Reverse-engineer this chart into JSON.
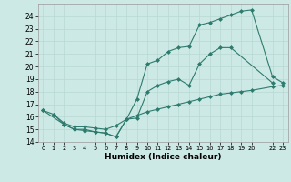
{
  "xlabel": "Humidex (Indice chaleur)",
  "xlim": [
    -0.5,
    23.5
  ],
  "ylim": [
    14,
    25
  ],
  "yticks": [
    14,
    15,
    16,
    17,
    18,
    19,
    20,
    21,
    22,
    23,
    24
  ],
  "xtick_positions": [
    0,
    1,
    2,
    3,
    4,
    5,
    6,
    7,
    8,
    9,
    10,
    11,
    12,
    13,
    14,
    15,
    16,
    17,
    18,
    19,
    20,
    22,
    23
  ],
  "xtick_labels": [
    "0",
    "1",
    "2",
    "3",
    "4",
    "5",
    "6",
    "7",
    "8",
    "9",
    "10",
    "11",
    "12",
    "13",
    "14",
    "15",
    "16",
    "17",
    "18",
    "19",
    "20",
    "22",
    "23"
  ],
  "bg_color": "#cce9e5",
  "grid_color": "#b8d8d4",
  "line_color": "#2e7b6e",
  "line1_x": [
    0,
    1,
    2,
    3,
    4,
    5,
    6,
    7,
    8,
    9,
    10,
    11,
    12,
    13,
    14,
    15,
    16,
    17,
    18,
    22
  ],
  "line1_y": [
    16.5,
    16.2,
    15.4,
    15.0,
    15.0,
    14.8,
    14.7,
    14.4,
    15.8,
    15.9,
    18.0,
    18.5,
    18.8,
    19.0,
    18.5,
    20.2,
    21.0,
    21.5,
    21.5,
    18.7
  ],
  "line2_x": [
    0,
    2,
    3,
    4,
    5,
    6,
    7,
    8,
    9,
    10,
    11,
    12,
    13,
    14,
    15,
    16,
    17,
    18,
    19,
    20,
    22,
    23
  ],
  "line2_y": [
    16.5,
    15.4,
    15.0,
    14.9,
    14.8,
    14.7,
    14.4,
    15.8,
    17.4,
    20.2,
    20.5,
    21.2,
    21.5,
    21.6,
    23.3,
    23.5,
    23.8,
    24.1,
    24.4,
    24.5,
    19.2,
    18.7
  ],
  "line3_x": [
    1,
    2,
    3,
    4,
    5,
    6,
    7,
    8,
    9,
    10,
    11,
    12,
    13,
    14,
    15,
    16,
    17,
    18,
    19,
    20,
    22,
    23
  ],
  "line3_y": [
    16.2,
    15.5,
    15.2,
    15.2,
    15.1,
    15.0,
    15.3,
    15.8,
    16.1,
    16.4,
    16.6,
    16.8,
    17.0,
    17.2,
    17.4,
    17.6,
    17.8,
    17.9,
    18.0,
    18.1,
    18.4,
    18.5
  ]
}
